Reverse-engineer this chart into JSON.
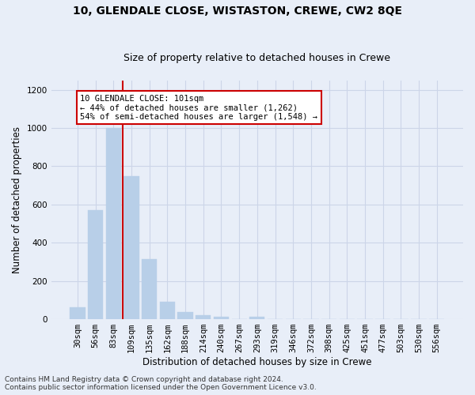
{
  "title": "10, GLENDALE CLOSE, WISTASTON, CREWE, CW2 8QE",
  "subtitle": "Size of property relative to detached houses in Crewe",
  "xlabel": "Distribution of detached houses by size in Crewe",
  "ylabel": "Number of detached properties",
  "bar_labels": [
    "30sqm",
    "56sqm",
    "83sqm",
    "109sqm",
    "135sqm",
    "162sqm",
    "188sqm",
    "214sqm",
    "240sqm",
    "267sqm",
    "293sqm",
    "319sqm",
    "346sqm",
    "372sqm",
    "398sqm",
    "425sqm",
    "451sqm",
    "477sqm",
    "503sqm",
    "530sqm",
    "556sqm"
  ],
  "bar_values": [
    62,
    570,
    1000,
    750,
    315,
    90,
    38,
    22,
    12,
    0,
    12,
    0,
    0,
    0,
    0,
    0,
    0,
    0,
    0,
    0,
    0
  ],
  "bar_color": "#b8cfe8",
  "bar_edgecolor": "#b8cfe8",
  "property_line_x": 2.5,
  "annotation_text": "10 GLENDALE CLOSE: 101sqm\n← 44% of detached houses are smaller (1,262)\n54% of semi-detached houses are larger (1,548) →",
  "annotation_box_facecolor": "#ffffff",
  "annotation_box_edgecolor": "#cc0000",
  "vline_color": "#cc0000",
  "ylim": [
    0,
    1250
  ],
  "yticks": [
    0,
    200,
    400,
    600,
    800,
    1000,
    1200
  ],
  "grid_color": "#ccd5e8",
  "background_color": "#e8eef8",
  "axes_background": "#e8eef8",
  "footer_line1": "Contains HM Land Registry data © Crown copyright and database right 2024.",
  "footer_line2": "Contains public sector information licensed under the Open Government Licence v3.0.",
  "title_fontsize": 10,
  "subtitle_fontsize": 9,
  "xlabel_fontsize": 8.5,
  "ylabel_fontsize": 8.5,
  "tick_fontsize": 7.5,
  "annotation_fontsize": 7.5,
  "footer_fontsize": 6.5
}
